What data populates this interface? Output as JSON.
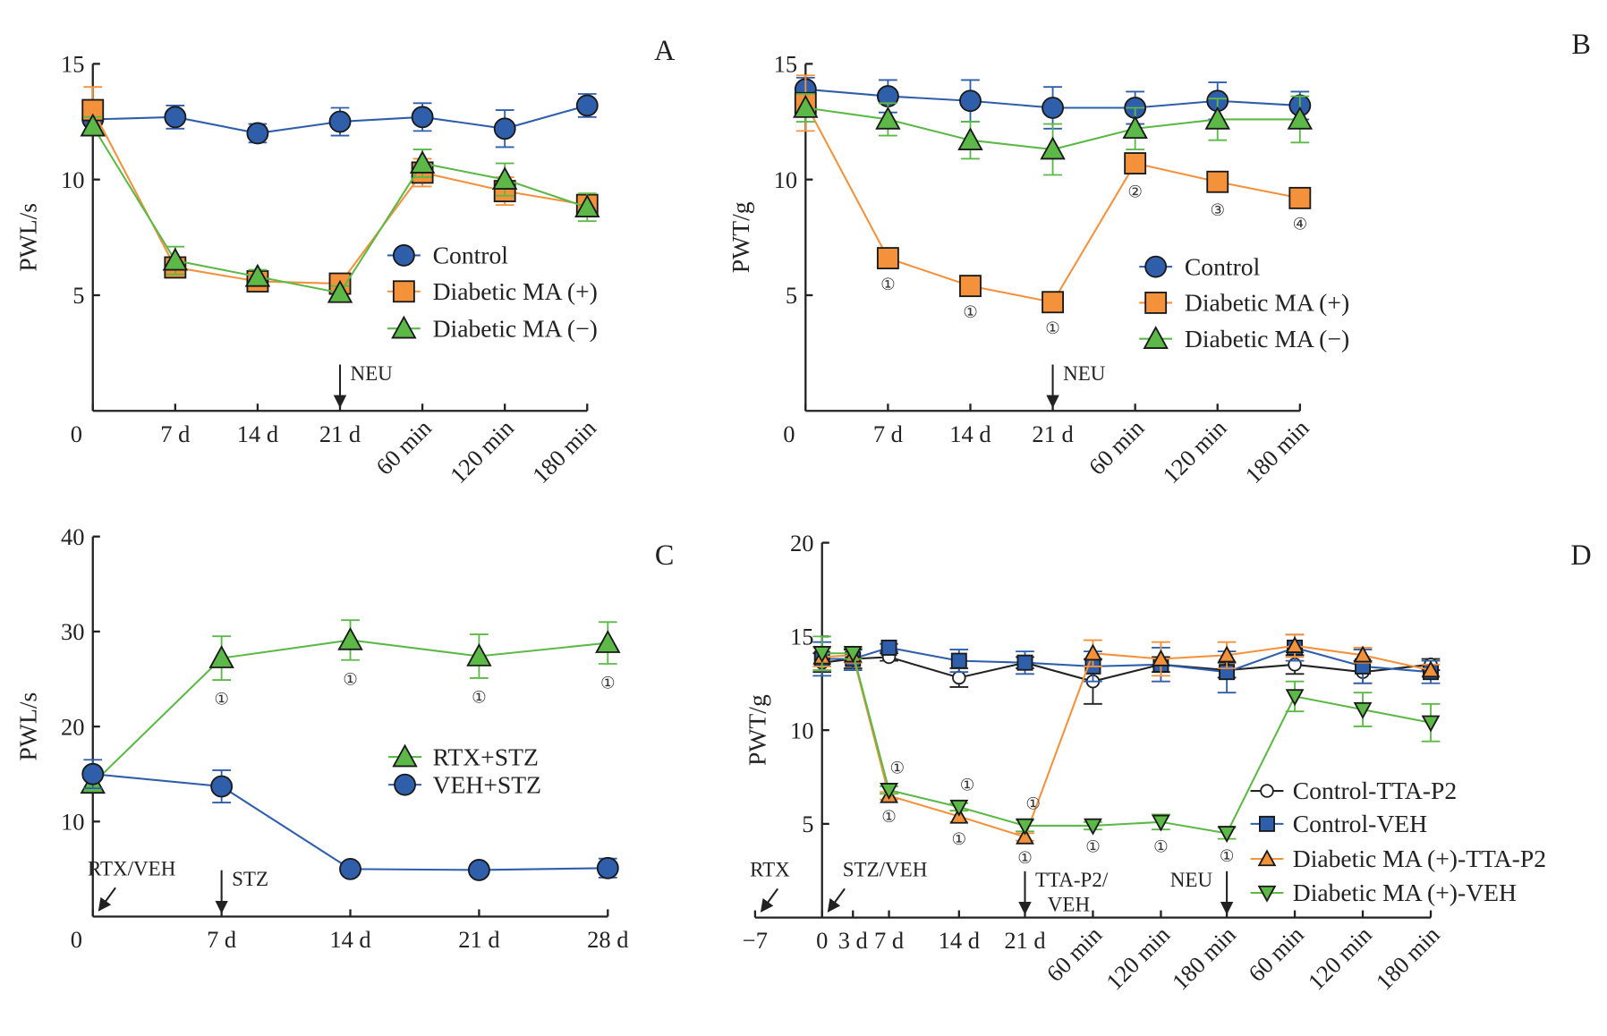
{
  "colors": {
    "control": "#2f5eab",
    "ma_plus": "#f4923c",
    "ma_minus": "#5cb947",
    "black": "#222222"
  },
  "chart_data": [
    {
      "panel": "A",
      "type": "line",
      "ylabel": "PWL/s",
      "ylim": [
        0,
        15
      ],
      "yticks": [
        "5",
        "10",
        "15"
      ],
      "ytick_values": [
        5,
        10,
        15
      ],
      "categories": [
        "0",
        "7 d",
        "14 d",
        "21 d",
        "60 min",
        "120 min",
        "180 min"
      ],
      "arrows": [
        {
          "label": "NEU",
          "at": "21 d"
        }
      ],
      "series": [
        {
          "name": "Control",
          "marker": "circle",
          "color": "#2f5eab",
          "values": [
            12.6,
            12.7,
            12.0,
            12.5,
            12.7,
            12.2,
            13.2
          ],
          "err": [
            0.5,
            0.5,
            0.4,
            0.6,
            0.6,
            0.8,
            0.5
          ]
        },
        {
          "name": "Diabetic MA (+)",
          "marker": "square",
          "color": "#f4923c",
          "values": [
            13.0,
            6.2,
            5.6,
            5.5,
            10.3,
            9.5,
            8.9
          ],
          "err": [
            1.0,
            0.3,
            0.4,
            0.3,
            0.6,
            0.6,
            0.4
          ]
        },
        {
          "name": "Diabetic MA (−)",
          "marker": "triangle",
          "color": "#5cb947",
          "values": [
            12.3,
            6.5,
            5.8,
            5.1,
            10.7,
            10.0,
            8.8
          ],
          "err": [
            0.4,
            0.6,
            0.3,
            0.3,
            0.6,
            0.7,
            0.6
          ]
        }
      ]
    },
    {
      "panel": "B",
      "type": "line",
      "ylabel": "PWT/g",
      "ylim": [
        0,
        15
      ],
      "yticks": [
        "5",
        "10",
        "15"
      ],
      "ytick_values": [
        5,
        10,
        15
      ],
      "categories": [
        "0",
        "7 d",
        "14 d",
        "21 d",
        "60 min",
        "120 min",
        "180 min"
      ],
      "arrows": [
        {
          "label": "NEU",
          "at": "21 d"
        }
      ],
      "series": [
        {
          "name": "Control",
          "marker": "circle",
          "color": "#2f5eab",
          "values": [
            13.9,
            13.6,
            13.4,
            13.1,
            13.1,
            13.4,
            13.2
          ],
          "err": [
            0.5,
            0.7,
            0.9,
            0.9,
            0.7,
            0.8,
            0.6
          ]
        },
        {
          "name": "Diabetic MA (+)",
          "marker": "square",
          "color": "#f4923c",
          "values": [
            13.3,
            6.6,
            5.4,
            4.7,
            10.7,
            9.9,
            9.2
          ],
          "err": [
            1.2,
            0.3,
            0.3,
            0.3,
            0.4,
            0.4,
            0.3
          ],
          "annotations": [
            "",
            "①",
            "①",
            "①",
            "②",
            "③",
            "④"
          ]
        },
        {
          "name": "Diabetic MA (−)",
          "marker": "triangle",
          "color": "#5cb947",
          "values": [
            13.1,
            12.6,
            11.7,
            11.3,
            12.2,
            12.6,
            12.6
          ],
          "err": [
            0.6,
            0.7,
            0.8,
            1.1,
            0.9,
            0.9,
            1.0
          ]
        }
      ]
    },
    {
      "panel": "C",
      "type": "line",
      "ylabel": "PWL/s",
      "ylim": [
        0,
        40
      ],
      "yticks": [
        "10",
        "20",
        "30",
        "40"
      ],
      "ytick_values": [
        10,
        20,
        30,
        40
      ],
      "categories": [
        "0",
        "7 d",
        "14 d",
        "21 d",
        "28 d"
      ],
      "arrows": [
        {
          "label": "RTX/VEH",
          "at": "0"
        },
        {
          "label": "STZ",
          "at": "7 d"
        }
      ],
      "series": [
        {
          "name": "RTX+STZ",
          "marker": "triangle",
          "color": "#5cb947",
          "values": [
            14.0,
            27.2,
            29.1,
            27.4,
            28.8
          ],
          "err": [
            0.8,
            2.3,
            2.1,
            2.3,
            2.2
          ],
          "annotations": [
            "",
            "①",
            "①",
            "①",
            "①"
          ]
        },
        {
          "name": "VEH+STZ",
          "marker": "circle",
          "color": "#2f5eab",
          "values": [
            15.0,
            13.7,
            5.0,
            4.9,
            5.1
          ],
          "err": [
            1.5,
            1.7,
            0.3,
            0.3,
            1.0
          ]
        }
      ]
    },
    {
      "panel": "D",
      "type": "line",
      "ylabel": "PWT/g",
      "ylim": [
        0,
        20
      ],
      "yticks": [
        "5",
        "10",
        "15",
        "20"
      ],
      "ytick_values": [
        5,
        10,
        15,
        20
      ],
      "categories": [
        "−7",
        "0",
        "3 d",
        "7 d",
        "14 d",
        "21 d",
        "60 min",
        "120 min",
        "180 min",
        "60 min",
        "120 min",
        "180 min"
      ],
      "arrows": [
        {
          "label": "RTX",
          "at": "−7"
        },
        {
          "label": "STZ/VEH",
          "at": "0"
        },
        {
          "label": "TTA-P2/",
          "label2": "VEH",
          "at": "21 d"
        },
        {
          "label": "NEU",
          "at": "180 min"
        }
      ],
      "series": [
        {
          "name": "Control-TTA-P2",
          "marker": "open-circle",
          "color": "#222222",
          "values": [
            null,
            13.6,
            13.8,
            13.9,
            12.8,
            13.6,
            12.6,
            13.5,
            13.2,
            13.5,
            13.1,
            13.5
          ],
          "err": [
            0,
            0.5,
            0.5,
            0.2,
            0.5,
            0.3,
            1.2,
            0.4,
            0.4,
            0.5,
            0.6,
            0.3
          ]
        },
        {
          "name": "Control-VEH",
          "marker": "square",
          "color": "#2f5eab",
          "values": [
            null,
            13.8,
            13.8,
            14.4,
            13.7,
            13.6,
            13.4,
            13.5,
            13.1,
            14.4,
            13.4,
            13.1
          ],
          "err": [
            0,
            0.9,
            0.6,
            0.2,
            0.6,
            0.6,
            0.8,
            0.9,
            1.1,
            0.7,
            0.9,
            0.6
          ]
        },
        {
          "name": "Diabetic MA (+)-TTA-P2",
          "marker": "triangle",
          "color": "#f4923c",
          "values": [
            null,
            13.9,
            14.0,
            6.5,
            5.4,
            4.3,
            14.1,
            13.8,
            14.0,
            14.5,
            14.0,
            13.2
          ],
          "err": [
            0,
            0.5,
            0.4,
            0.2,
            0.3,
            0.2,
            0.7,
            0.9,
            0.7,
            0.6,
            0.4,
            0.3
          ],
          "annotations": [
            "",
            "",
            "",
            "①",
            "①",
            "①",
            "",
            "",
            "",
            "",
            "",
            ""
          ]
        },
        {
          "name": "Diabetic MA (+)-VEH",
          "marker": "triangle-down",
          "color": "#5cb947",
          "values": [
            null,
            14.1,
            14.1,
            6.8,
            5.9,
            4.9,
            4.9,
            5.1,
            4.5,
            11.8,
            11.1,
            10.4
          ],
          "err": [
            0,
            0.9,
            0.3,
            0.2,
            0.2,
            0.3,
            0.2,
            0.4,
            0.3,
            0.8,
            0.9,
            1.0
          ],
          "annotations_above": [
            "",
            "",
            "",
            "①",
            "①",
            "①",
            "",
            "",
            "",
            "",
            "",
            ""
          ],
          "annotations": [
            "",
            "",
            "",
            "",
            "",
            "",
            "①",
            "①",
            "①",
            "",
            "",
            ""
          ]
        }
      ]
    }
  ]
}
